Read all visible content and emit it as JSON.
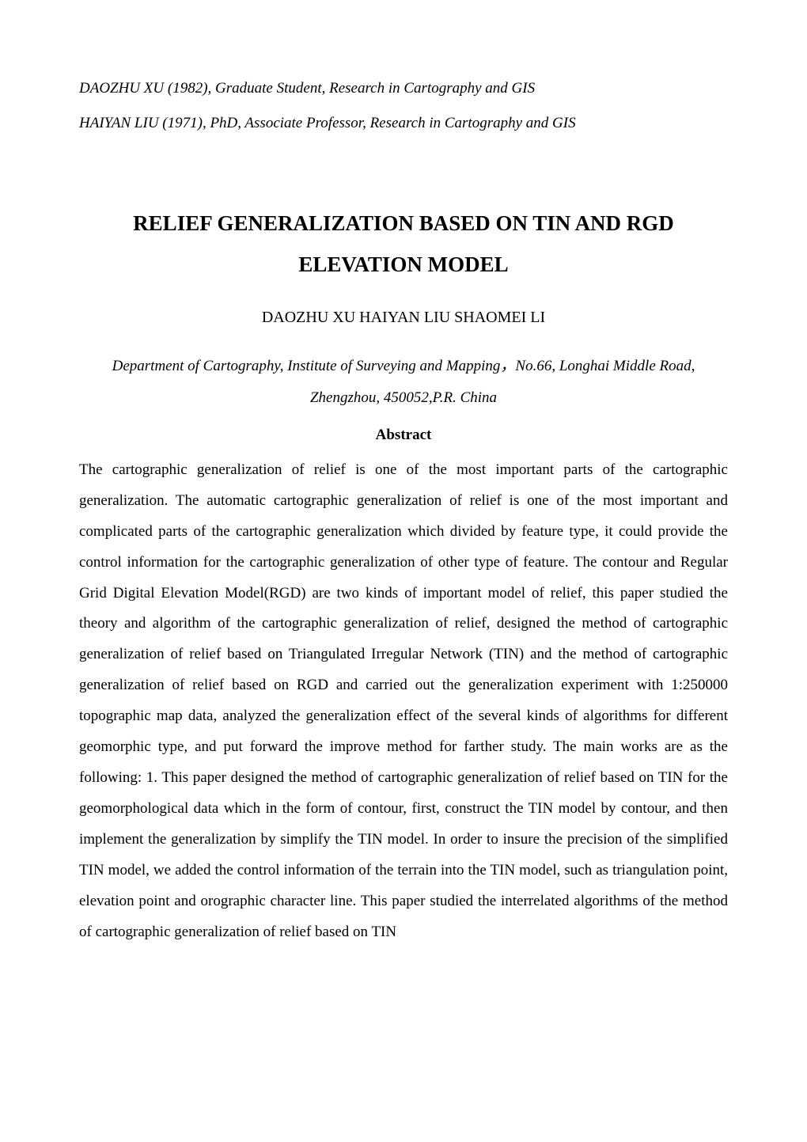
{
  "authorInfo": {
    "line1": "DAOZHU XU (1982), Graduate Student, Research in Cartography and GIS",
    "line2": "HAIYAN LIU (1971), PhD, Associate Professor, Research in Cartography and GIS"
  },
  "title": {
    "line1": "RELIEF GENERALIZATION BASED ON TIN AND RGD",
    "line2": "ELEVATION MODEL"
  },
  "authors": "DAOZHU XU   HAIYAN LIU  SHAOMEI LI",
  "affiliation": {
    "line1": "Department of Cartography, Institute of Surveying and Mapping，No.66, Longhai Middle Road,",
    "line2": "Zhengzhou, 450052,P.R. China"
  },
  "abstract": {
    "heading": "Abstract",
    "body": "The cartographic generalization of relief is one of the most important parts of the cartographic generalization. The automatic cartographic generalization of relief is one of the most important and complicated parts of the cartographic generalization which divided by feature type, it could provide the control information for the cartographic generalization of other type of feature. The contour and Regular Grid Digital Elevation Model(RGD) are two kinds of important model of relief, this paper studied the theory and algorithm of the cartographic generalization of relief, designed the method of cartographic generalization of relief based on Triangulated Irregular Network (TIN) and the method of cartographic generalization of relief based on RGD and carried out the generalization experiment with 1:250000 topographic map data, analyzed the generalization effect of the several kinds of algorithms for different geomorphic type, and put forward the improve method for farther study. The main works are as the following:  1. This paper designed the method of cartographic generalization of relief based on TIN for the geomorphological data which in the form of contour, first, construct the TIN model by contour, and then implement the generalization by simplify the TIN model. In order to insure the precision of the simplified TIN model, we added the control information of the terrain into the TIN model, such as triangulation point, elevation point and orographic character line. This paper studied the interrelated algorithms of the method of cartographic generalization of relief based on TIN"
  }
}
